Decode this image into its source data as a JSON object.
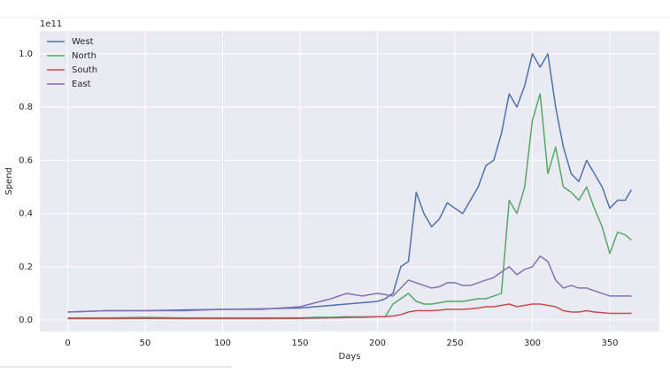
{
  "chart_data": {
    "type": "line",
    "xlabel": "Days",
    "ylabel": "Spend",
    "y_offset_label": "1e11",
    "x": [
      0,
      25,
      50,
      75,
      100,
      125,
      150,
      160,
      170,
      180,
      190,
      200,
      205,
      210,
      215,
      220,
      225,
      230,
      235,
      240,
      245,
      250,
      255,
      260,
      265,
      270,
      275,
      280,
      285,
      290,
      295,
      300,
      305,
      310,
      315,
      320,
      325,
      330,
      335,
      340,
      345,
      350,
      355,
      360,
      364
    ],
    "series": [
      {
        "name": "West",
        "color": "#4c72b0",
        "values": [
          0.03,
          0.035,
          0.035,
          0.038,
          0.04,
          0.042,
          0.045,
          0.05,
          0.055,
          0.06,
          0.065,
          0.07,
          0.08,
          0.1,
          0.2,
          0.22,
          0.48,
          0.4,
          0.35,
          0.38,
          0.44,
          0.42,
          0.4,
          0.45,
          0.5,
          0.58,
          0.6,
          0.7,
          0.85,
          0.8,
          0.88,
          1.0,
          0.95,
          1.0,
          0.8,
          0.65,
          0.55,
          0.52,
          0.6,
          0.55,
          0.5,
          0.42,
          0.45,
          0.45,
          0.49
        ]
      },
      {
        "name": "North",
        "color": "#55a868",
        "values": [
          0.008,
          0.008,
          0.01,
          0.008,
          0.008,
          0.008,
          0.008,
          0.01,
          0.01,
          0.012,
          0.012,
          0.012,
          0.012,
          0.06,
          0.08,
          0.1,
          0.07,
          0.06,
          0.06,
          0.065,
          0.07,
          0.07,
          0.07,
          0.075,
          0.08,
          0.08,
          0.09,
          0.1,
          0.45,
          0.4,
          0.5,
          0.75,
          0.85,
          0.55,
          0.65,
          0.5,
          0.48,
          0.45,
          0.5,
          0.42,
          0.35,
          0.25,
          0.33,
          0.32,
          0.3
        ]
      },
      {
        "name": "South",
        "color": "#c44e52",
        "values": [
          0.005,
          0.005,
          0.006,
          0.005,
          0.005,
          0.005,
          0.006,
          0.007,
          0.008,
          0.009,
          0.01,
          0.012,
          0.013,
          0.015,
          0.02,
          0.03,
          0.035,
          0.035,
          0.035,
          0.037,
          0.04,
          0.04,
          0.04,
          0.042,
          0.045,
          0.05,
          0.05,
          0.055,
          0.06,
          0.05,
          0.055,
          0.06,
          0.06,
          0.055,
          0.05,
          0.035,
          0.03,
          0.03,
          0.035,
          0.03,
          0.028,
          0.025,
          0.025,
          0.025,
          0.025
        ]
      },
      {
        "name": "East",
        "color": "#8172b2",
        "values": [
          0.03,
          0.035,
          0.035,
          0.035,
          0.04,
          0.04,
          0.05,
          0.065,
          0.08,
          0.1,
          0.09,
          0.1,
          0.095,
          0.09,
          0.12,
          0.15,
          0.14,
          0.13,
          0.12,
          0.125,
          0.14,
          0.14,
          0.13,
          0.13,
          0.14,
          0.15,
          0.16,
          0.18,
          0.2,
          0.17,
          0.19,
          0.2,
          0.24,
          0.22,
          0.15,
          0.12,
          0.13,
          0.12,
          0.12,
          0.11,
          0.1,
          0.09,
          0.09,
          0.09,
          0.09
        ]
      }
    ],
    "xlim": [
      -18,
      382
    ],
    "ylim": [
      -0.043,
      1.086
    ],
    "xticks": [
      0,
      50,
      100,
      150,
      200,
      250,
      300,
      350
    ],
    "yticks": [
      {
        "value": 0,
        "label": "0.0"
      },
      0.2,
      0.4,
      0.6,
      0.8,
      {
        "value": 1,
        "label": "1.0"
      }
    ],
    "grid": true,
    "legend": "upper left"
  }
}
